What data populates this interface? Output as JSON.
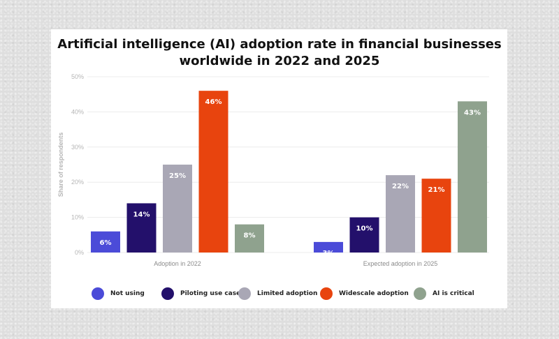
{
  "chart_data": {
    "type": "bar",
    "title": [
      "Artificial intelligence (AI) adoption rate in financial businesses",
      "worldwide in 2022 and 2025"
    ],
    "ylabel": "Share of respondents",
    "xlabel": "",
    "ylim": [
      0,
      50
    ],
    "yticks": [
      0,
      10,
      20,
      30,
      40,
      50
    ],
    "ytick_labels": [
      "0%",
      "10%",
      "20%",
      "30%",
      "40%",
      "50%"
    ],
    "grid": true,
    "categories": [
      "Adoption in 2022",
      "Expected adoption in 2025"
    ],
    "series": [
      {
        "name": "Not using",
        "color": "#4b4bd8",
        "values": [
          6,
          3
        ],
        "labels": [
          "6%",
          "3%"
        ]
      },
      {
        "name": "Piloting use cases",
        "color": "#23106b",
        "values": [
          14,
          10
        ],
        "labels": [
          "14%",
          "10%"
        ]
      },
      {
        "name": "Limited adoption",
        "color": "#a9a7b5",
        "values": [
          25,
          22
        ],
        "labels": [
          "25%",
          "22%"
        ]
      },
      {
        "name": "Widescale adoption",
        "color": "#e8440e",
        "values": [
          46,
          21
        ],
        "labels": [
          "46%",
          "21%"
        ]
      },
      {
        "name": "AI is critical",
        "color": "#8fa28e",
        "values": [
          8,
          43
        ],
        "labels": [
          "8%",
          "43%"
        ]
      }
    ],
    "legend_position": "bottom"
  }
}
